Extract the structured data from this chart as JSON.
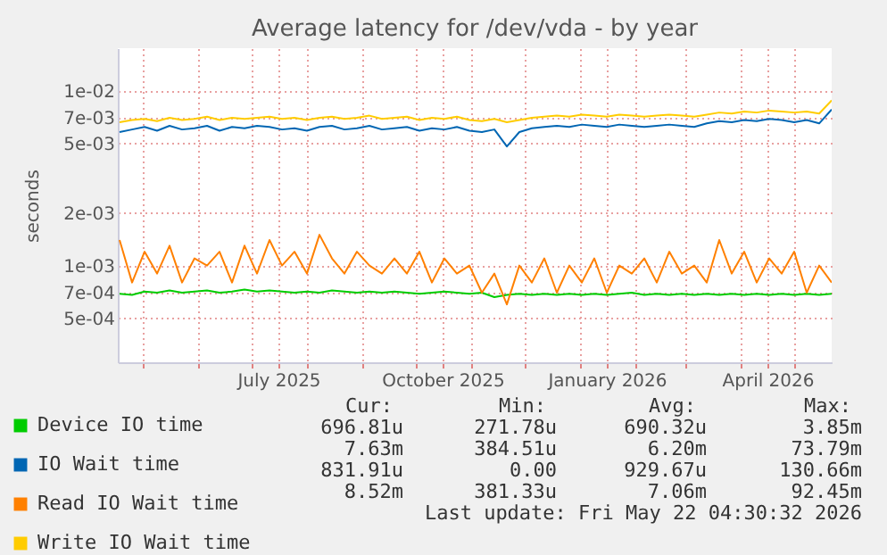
{
  "chart_data": {
    "type": "line",
    "title": "Average latency for /dev/vda - by year",
    "ylabel": "seconds",
    "x": [
      "2025-04-18",
      "2025-04-25",
      "2025-05-02",
      "2025-05-09",
      "2025-05-16",
      "2025-05-23",
      "2025-05-30",
      "2025-06-06",
      "2025-06-13",
      "2025-06-20",
      "2025-06-27",
      "2025-07-04",
      "2025-07-11",
      "2025-07-18",
      "2025-07-25",
      "2025-08-01",
      "2025-08-08",
      "2025-08-15",
      "2025-08-22",
      "2025-08-29",
      "2025-09-05",
      "2025-09-12",
      "2025-09-19",
      "2025-09-26",
      "2025-10-03",
      "2025-10-10",
      "2025-10-17",
      "2025-10-24",
      "2025-10-31",
      "2025-11-07",
      "2025-11-14",
      "2025-11-21",
      "2025-11-28",
      "2025-12-05",
      "2025-12-12",
      "2025-12-19",
      "2025-12-26",
      "2026-01-02",
      "2026-01-09",
      "2026-01-16",
      "2026-01-23",
      "2026-01-30",
      "2026-02-06",
      "2026-02-13",
      "2026-02-20",
      "2026-02-27",
      "2026-03-06",
      "2026-03-13",
      "2026-03-20",
      "2026-03-27",
      "2026-04-03",
      "2026-04-10",
      "2026-04-17",
      "2026-04-24",
      "2026-05-01",
      "2026-05-08",
      "2026-05-15",
      "2026-05-22"
    ],
    "series": [
      {
        "name": "Device IO time",
        "color": "#00cc00",
        "values": [
          0.00069,
          0.00068,
          0.00071,
          0.0007,
          0.00072,
          0.0007,
          0.00071,
          0.00072,
          0.0007,
          0.00071,
          0.00073,
          0.00071,
          0.00072,
          0.00071,
          0.0007,
          0.00071,
          0.0007,
          0.00072,
          0.00071,
          0.0007,
          0.00071,
          0.0007,
          0.00071,
          0.0007,
          0.00069,
          0.0007,
          0.00071,
          0.0007,
          0.00069,
          0.0007,
          0.00066,
          0.00068,
          0.00069,
          0.00068,
          0.00069,
          0.00068,
          0.00069,
          0.00068,
          0.00069,
          0.00068,
          0.00069,
          0.0007,
          0.00068,
          0.00069,
          0.00068,
          0.00069,
          0.00068,
          0.00069,
          0.00068,
          0.00069,
          0.00068,
          0.00069,
          0.00068,
          0.00069,
          0.00068,
          0.00069,
          0.00068,
          0.00069
        ]
      },
      {
        "name": "IO Wait time",
        "color": "#0066b3",
        "values": [
          0.0058,
          0.006,
          0.0062,
          0.0059,
          0.0063,
          0.006,
          0.0061,
          0.0063,
          0.0059,
          0.0062,
          0.0061,
          0.0063,
          0.0062,
          0.006,
          0.0061,
          0.0059,
          0.0062,
          0.0063,
          0.006,
          0.0061,
          0.0063,
          0.006,
          0.0061,
          0.0062,
          0.0059,
          0.0061,
          0.006,
          0.0062,
          0.0059,
          0.0058,
          0.006,
          0.0048,
          0.0058,
          0.0061,
          0.0062,
          0.0063,
          0.0062,
          0.0064,
          0.0063,
          0.0062,
          0.0064,
          0.0063,
          0.0062,
          0.0063,
          0.0064,
          0.0063,
          0.0062,
          0.0065,
          0.0067,
          0.0066,
          0.0068,
          0.0067,
          0.0069,
          0.0068,
          0.0066,
          0.0068,
          0.0065,
          0.0078
        ]
      },
      {
        "name": "Read IO Wait time",
        "color": "#ff8000",
        "values": [
          0.0014,
          0.0008,
          0.0012,
          0.0009,
          0.0013,
          0.0008,
          0.0011,
          0.001,
          0.0012,
          0.0008,
          0.0013,
          0.0009,
          0.0014,
          0.001,
          0.0012,
          0.0009,
          0.0015,
          0.0011,
          0.0009,
          0.0012,
          0.001,
          0.0009,
          0.0011,
          0.0009,
          0.0012,
          0.0008,
          0.0011,
          0.0009,
          0.001,
          0.0007,
          0.0009,
          0.0006,
          0.001,
          0.0008,
          0.0011,
          0.0007,
          0.001,
          0.0008,
          0.0011,
          0.0007,
          0.001,
          0.0009,
          0.0011,
          0.0008,
          0.0012,
          0.0009,
          0.001,
          0.0008,
          0.0014,
          0.0009,
          0.0012,
          0.0008,
          0.0011,
          0.0009,
          0.0012,
          0.0007,
          0.001,
          0.0008
        ]
      },
      {
        "name": "Write IO Wait time",
        "color": "#ffcc00",
        "values": [
          0.0066,
          0.0068,
          0.0069,
          0.0067,
          0.007,
          0.0068,
          0.0069,
          0.0071,
          0.0068,
          0.007,
          0.0069,
          0.007,
          0.0071,
          0.0069,
          0.007,
          0.0068,
          0.007,
          0.0071,
          0.0069,
          0.007,
          0.0072,
          0.0069,
          0.007,
          0.0071,
          0.0068,
          0.007,
          0.0069,
          0.0071,
          0.0068,
          0.0067,
          0.0069,
          0.0066,
          0.0068,
          0.007,
          0.0071,
          0.0072,
          0.0071,
          0.0073,
          0.0072,
          0.0071,
          0.0073,
          0.0072,
          0.0071,
          0.0072,
          0.0073,
          0.0072,
          0.0071,
          0.0073,
          0.0075,
          0.0074,
          0.0076,
          0.0075,
          0.0077,
          0.0076,
          0.0075,
          0.0076,
          0.0074,
          0.0088
        ]
      }
    ],
    "log": "y",
    "ylim": [
      0.00028,
      0.0175
    ],
    "yticks": [
      {
        "value": 0.0005,
        "label": "5e-04"
      },
      {
        "value": 0.0007,
        "label": "7e-04"
      },
      {
        "value": 0.001,
        "label": "1e-03"
      },
      {
        "value": 0.002,
        "label": "2e-03"
      },
      {
        "value": 0.005,
        "label": "5e-03"
      },
      {
        "value": 0.007,
        "label": "7e-03"
      },
      {
        "value": 0.01,
        "label": "1e-02"
      }
    ],
    "xlim": [
      "2025-04-17",
      "2026-05-22"
    ],
    "xticks": [
      {
        "value": "2025-05-01",
        "label": null
      },
      {
        "value": "2025-06-01",
        "label": null
      },
      {
        "value": "2025-07-01",
        "label": null
      },
      {
        "value": "2025-07-16",
        "label": "July 2025"
      },
      {
        "value": "2025-08-01",
        "label": null
      },
      {
        "value": "2025-09-01",
        "label": null
      },
      {
        "value": "2025-10-01",
        "label": null
      },
      {
        "value": "2025-10-16",
        "label": "October 2025"
      },
      {
        "value": "2025-11-01",
        "label": null
      },
      {
        "value": "2025-12-01",
        "label": null
      },
      {
        "value": "2026-01-01",
        "label": null
      },
      {
        "value": "2026-01-16",
        "label": "January 2026"
      },
      {
        "value": "2026-02-01",
        "label": null
      },
      {
        "value": "2026-03-01",
        "label": null
      },
      {
        "value": "2026-04-01",
        "label": null
      },
      {
        "value": "2026-04-16",
        "label": "April 2026"
      },
      {
        "value": "2026-05-01",
        "label": null
      }
    ],
    "grid": true,
    "legend": "bottom left",
    "marker": "none",
    "line_style": "solid",
    "annotations": [
      "Cur:",
      "Min:",
      "Avg:",
      "Max:",
      "696.81u",
      "271.78u",
      "690.32u",
      "3.85m",
      "7.63m",
      "384.51u",
      "6.20m",
      "73.79m",
      "831.91u",
      "0.00",
      "929.67u",
      "130.66m",
      "8.52m",
      "381.33u",
      "7.06m",
      "92.45m",
      "Last update: Fri May 22 04:30:32 2026"
    ]
  }
}
